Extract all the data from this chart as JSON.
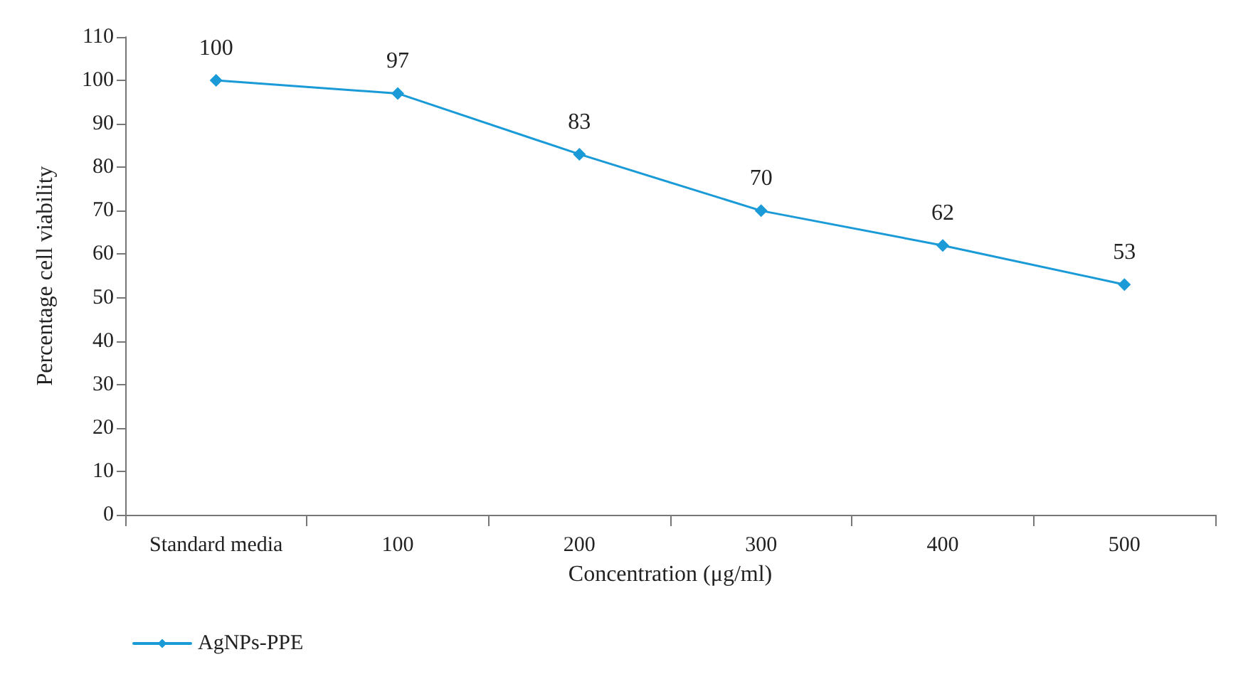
{
  "chart_data": {
    "type": "line",
    "xlabel": "Concentration (μg/ml)",
    "ylabel": "Percentage cell viability",
    "categories": [
      "Standard media",
      "100",
      "200",
      "300",
      "400",
      "500"
    ],
    "series": [
      {
        "name": "AgNPs-PPE",
        "color": "#1a9ad6",
        "values": [
          100,
          97,
          83,
          70,
          62,
          53
        ]
      }
    ],
    "ylim": [
      0,
      110
    ],
    "yticks": [
      0,
      10,
      20,
      30,
      40,
      50,
      60,
      70,
      80,
      90,
      100,
      110
    ],
    "data_labels": true,
    "marker": "diamond",
    "line_style": "solid",
    "grid": false,
    "legend": "bottom left"
  }
}
